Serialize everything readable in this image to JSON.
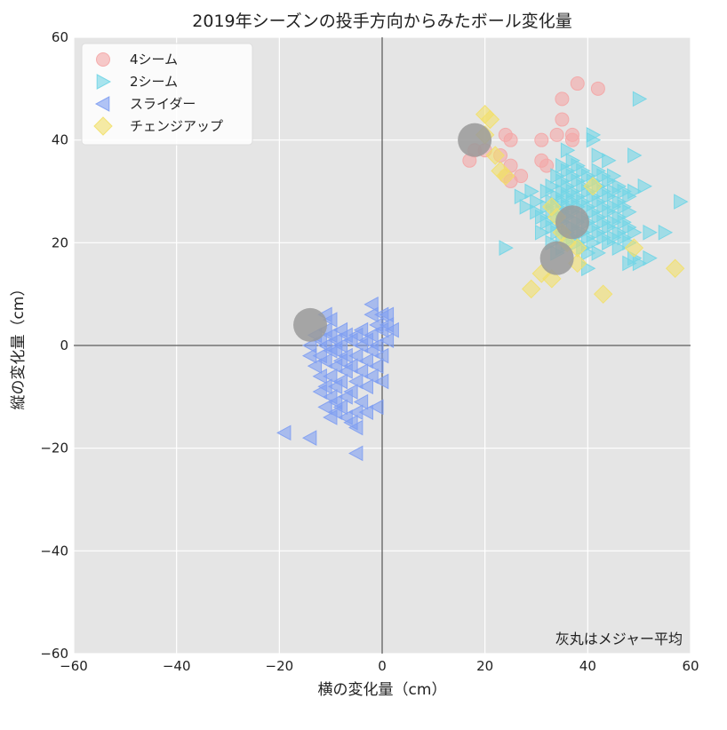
{
  "chart_data": {
    "type": "scatter",
    "title": "2019年シーズンの投手方向からみたボール変化量",
    "xlabel": "横の変化量（cm）",
    "ylabel": "縦の変化量（cm）",
    "xlim": [
      -60,
      60
    ],
    "ylim": [
      -60,
      60
    ],
    "xticks": [
      -60,
      -40,
      -20,
      0,
      20,
      40,
      60
    ],
    "yticks": [
      -60,
      -40,
      -20,
      0,
      20,
      40,
      60
    ],
    "tick_labels_x": [
      "−60",
      "−40",
      "−20",
      "0",
      "20",
      "40",
      "60"
    ],
    "tick_labels_y": [
      "−60",
      "−40",
      "−20",
      "0",
      "20",
      "40",
      "60"
    ],
    "grid": true,
    "legend_position": "top-left",
    "note": "灰丸はメジャー平均",
    "colors": {
      "background": "#e5e5e5",
      "grid": "#ffffff",
      "four_seam": "#f4a6a6",
      "two_seam": "#72d5e6",
      "slider": "#7f9ff2",
      "changeup": "#f2e06a",
      "mlb_average": "#9a9a9a"
    },
    "series": [
      {
        "name": "4シーム",
        "marker": "circle",
        "points": [
          [
            17,
            36
          ],
          [
            18,
            38
          ],
          [
            20,
            38
          ],
          [
            23,
            37
          ],
          [
            24,
            41
          ],
          [
            25,
            40
          ],
          [
            25,
            35
          ],
          [
            24,
            33
          ],
          [
            25,
            32
          ],
          [
            27,
            33
          ],
          [
            31,
            40
          ],
          [
            31,
            36
          ],
          [
            32,
            35
          ],
          [
            34,
            41
          ],
          [
            35,
            44
          ],
          [
            35,
            48
          ],
          [
            37,
            41
          ],
          [
            37,
            40
          ],
          [
            38,
            51
          ],
          [
            42,
            50
          ]
        ]
      },
      {
        "name": "2シーム",
        "marker": "triangle-right",
        "points": [
          [
            24,
            19
          ],
          [
            27,
            29
          ],
          [
            28,
            27
          ],
          [
            29,
            30
          ],
          [
            30,
            28
          ],
          [
            30,
            26
          ],
          [
            31,
            25
          ],
          [
            31,
            22
          ],
          [
            32,
            30
          ],
          [
            32,
            27
          ],
          [
            32,
            24
          ],
          [
            33,
            31
          ],
          [
            33,
            28
          ],
          [
            33,
            26
          ],
          [
            33,
            23
          ],
          [
            33,
            20
          ],
          [
            34,
            33
          ],
          [
            34,
            29
          ],
          [
            34,
            27
          ],
          [
            34,
            25
          ],
          [
            34,
            22
          ],
          [
            34,
            18
          ],
          [
            35,
            35
          ],
          [
            35,
            32
          ],
          [
            35,
            30
          ],
          [
            35,
            28
          ],
          [
            35,
            26
          ],
          [
            35,
            24
          ],
          [
            35,
            21
          ],
          [
            35,
            19
          ],
          [
            36,
            38
          ],
          [
            36,
            34
          ],
          [
            36,
            31
          ],
          [
            36,
            29
          ],
          [
            36,
            27
          ],
          [
            36,
            25
          ],
          [
            36,
            22
          ],
          [
            36,
            20
          ],
          [
            37,
            36
          ],
          [
            37,
            33
          ],
          [
            37,
            30
          ],
          [
            37,
            28
          ],
          [
            37,
            26
          ],
          [
            37,
            23
          ],
          [
            37,
            21
          ],
          [
            38,
            35
          ],
          [
            38,
            32
          ],
          [
            38,
            29
          ],
          [
            38,
            27
          ],
          [
            38,
            24
          ],
          [
            38,
            22
          ],
          [
            38,
            20
          ],
          [
            39,
            34
          ],
          [
            39,
            31
          ],
          [
            39,
            28
          ],
          [
            39,
            25
          ],
          [
            39,
            22
          ],
          [
            39,
            19
          ],
          [
            40,
            33
          ],
          [
            40,
            30
          ],
          [
            40,
            27
          ],
          [
            40,
            24
          ],
          [
            40,
            21
          ],
          [
            40,
            18
          ],
          [
            40,
            15
          ],
          [
            41,
            40
          ],
          [
            41,
            41
          ],
          [
            41,
            32
          ],
          [
            41,
            29
          ],
          [
            41,
            26
          ],
          [
            41,
            23
          ],
          [
            41,
            20
          ],
          [
            42,
            37
          ],
          [
            42,
            34
          ],
          [
            42,
            31
          ],
          [
            42,
            28
          ],
          [
            42,
            25
          ],
          [
            42,
            22
          ],
          [
            42,
            18
          ],
          [
            43,
            33
          ],
          [
            43,
            30
          ],
          [
            43,
            27
          ],
          [
            43,
            24
          ],
          [
            43,
            21
          ],
          [
            44,
            36
          ],
          [
            44,
            32
          ],
          [
            44,
            29
          ],
          [
            44,
            26
          ],
          [
            44,
            23
          ],
          [
            44,
            20
          ],
          [
            45,
            33
          ],
          [
            45,
            30
          ],
          [
            45,
            27
          ],
          [
            45,
            24
          ],
          [
            45,
            21
          ],
          [
            46,
            31
          ],
          [
            46,
            28
          ],
          [
            46,
            25
          ],
          [
            46,
            22
          ],
          [
            46,
            19
          ],
          [
            47,
            30
          ],
          [
            47,
            27
          ],
          [
            47,
            24
          ],
          [
            47,
            21
          ],
          [
            48,
            29
          ],
          [
            48,
            26
          ],
          [
            48,
            23
          ],
          [
            48,
            20
          ],
          [
            48,
            16
          ],
          [
            49,
            37
          ],
          [
            49,
            30
          ],
          [
            49,
            22
          ],
          [
            49,
            17
          ],
          [
            50,
            48
          ],
          [
            50,
            16
          ],
          [
            51,
            31
          ],
          [
            52,
            22
          ],
          [
            52,
            17
          ],
          [
            55,
            22
          ],
          [
            58,
            28
          ]
        ]
      },
      {
        "name": "スライダー",
        "marker": "triangle-left",
        "points": [
          [
            -19,
            -17
          ],
          [
            -14,
            -18
          ],
          [
            -14,
            -2
          ],
          [
            -14,
            0
          ],
          [
            -13,
            -4
          ],
          [
            -13,
            2
          ],
          [
            -12,
            -6
          ],
          [
            -12,
            -2
          ],
          [
            -12,
            1
          ],
          [
            -12,
            -9
          ],
          [
            -11,
            -8
          ],
          [
            -11,
            -3
          ],
          [
            -11,
            0
          ],
          [
            -11,
            3
          ],
          [
            -11,
            6
          ],
          [
            -11,
            -12
          ],
          [
            -10,
            -10
          ],
          [
            -10,
            -6
          ],
          [
            -10,
            -1
          ],
          [
            -10,
            2
          ],
          [
            -10,
            5
          ],
          [
            -10,
            -14
          ],
          [
            -9,
            -13
          ],
          [
            -9,
            -8
          ],
          [
            -9,
            -4
          ],
          [
            -9,
            -1
          ],
          [
            -9,
            1
          ],
          [
            -9,
            -11
          ],
          [
            -8,
            -7
          ],
          [
            -8,
            -3
          ],
          [
            -8,
            0
          ],
          [
            -8,
            3
          ],
          [
            -8,
            -12
          ],
          [
            -7,
            -10
          ],
          [
            -7,
            -5
          ],
          [
            -7,
            -2
          ],
          [
            -7,
            2
          ],
          [
            -7,
            -14
          ],
          [
            -6,
            -9
          ],
          [
            -6,
            -4
          ],
          [
            -6,
            1
          ],
          [
            -6,
            -15
          ],
          [
            -5,
            -13
          ],
          [
            -5,
            -7
          ],
          [
            -5,
            -2
          ],
          [
            -5,
            2
          ],
          [
            -5,
            -16
          ],
          [
            -5,
            -21
          ],
          [
            -4,
            -11
          ],
          [
            -4,
            -5
          ],
          [
            -4,
            0
          ],
          [
            -4,
            3
          ],
          [
            -3,
            -8
          ],
          [
            -3,
            -3
          ],
          [
            -3,
            1
          ],
          [
            -3,
            -13
          ],
          [
            -2,
            -6
          ],
          [
            -2,
            -1
          ],
          [
            -2,
            2
          ],
          [
            -2,
            6
          ],
          [
            -2,
            8
          ],
          [
            -1,
            -4
          ],
          [
            -1,
            0
          ],
          [
            -1,
            4
          ],
          [
            -1,
            -12
          ],
          [
            0,
            -2
          ],
          [
            0,
            3
          ],
          [
            0,
            6
          ],
          [
            0,
            -7
          ],
          [
            1,
            1
          ],
          [
            1,
            4
          ],
          [
            1,
            6
          ],
          [
            2,
            3
          ]
        ]
      },
      {
        "name": "チェンジアップ",
        "marker": "diamond",
        "points": [
          [
            20,
            45
          ],
          [
            21,
            44
          ],
          [
            20,
            41
          ],
          [
            22,
            37
          ],
          [
            23,
            34
          ],
          [
            24,
            33
          ],
          [
            29,
            11
          ],
          [
            31,
            14
          ],
          [
            33,
            13
          ],
          [
            33,
            27
          ],
          [
            34,
            25
          ],
          [
            35,
            22
          ],
          [
            36,
            20
          ],
          [
            38,
            19
          ],
          [
            38,
            16
          ],
          [
            41,
            31
          ],
          [
            43,
            10
          ],
          [
            49,
            19
          ],
          [
            57,
            15
          ]
        ]
      },
      {
        "name": "MLB平均",
        "marker": "big-circle",
        "in_legend": false,
        "points": [
          [
            -14,
            4
          ],
          [
            18,
            40
          ],
          [
            34,
            17
          ],
          [
            37,
            24
          ]
        ]
      }
    ]
  }
}
